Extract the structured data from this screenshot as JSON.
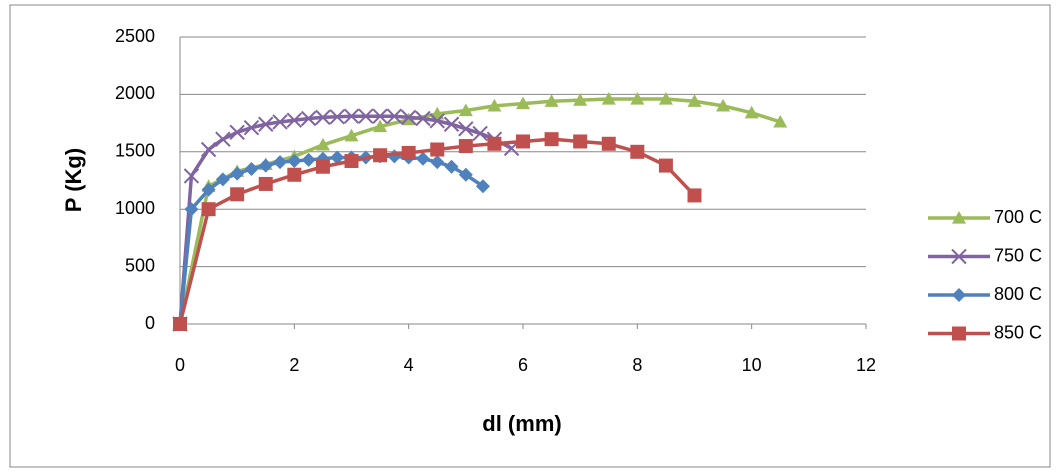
{
  "chart_data": {
    "type": "line",
    "x_label": "dl (mm)",
    "y_label": "P (Kg)",
    "xlim": [
      0,
      12
    ],
    "xticks": [
      0,
      2,
      4,
      6,
      8,
      10,
      12
    ],
    "ylim": [
      0,
      2500
    ],
    "yticks": [
      0,
      500,
      1000,
      1500,
      2000,
      2500
    ],
    "grid": true,
    "legend": "right",
    "series": [
      {
        "name": "700 C",
        "color": "#9bbb59",
        "marker": "triangle",
        "x": [
          0,
          0.5,
          1,
          1.5,
          2,
          2.5,
          3,
          3.5,
          4,
          4.5,
          5,
          5.5,
          6,
          6.5,
          7,
          7.5,
          8,
          8.5,
          9,
          9.5,
          10,
          10.5
        ],
        "values": [
          0,
          1200,
          1330,
          1390,
          1460,
          1560,
          1640,
          1720,
          1780,
          1830,
          1860,
          1900,
          1920,
          1940,
          1950,
          1960,
          1960,
          1960,
          1940,
          1900,
          1840,
          1760
        ]
      },
      {
        "name": "750 C",
        "color": "#8064a2",
        "marker": "x",
        "x": [
          0,
          0.2,
          0.5,
          0.75,
          1,
          1.25,
          1.5,
          1.75,
          2,
          2.25,
          2.5,
          2.75,
          3,
          3.25,
          3.5,
          3.75,
          4,
          4.25,
          4.5,
          4.75,
          5,
          5.25,
          5.5,
          5.8
        ],
        "values": [
          0,
          1290,
          1520,
          1610,
          1670,
          1710,
          1740,
          1760,
          1775,
          1790,
          1800,
          1805,
          1810,
          1810,
          1810,
          1810,
          1800,
          1790,
          1770,
          1740,
          1700,
          1660,
          1610,
          1530
        ]
      },
      {
        "name": "800 C",
        "color": "#4f81bd",
        "marker": "diamond",
        "x": [
          0,
          0.2,
          0.5,
          0.75,
          1,
          1.25,
          1.5,
          1.75,
          2,
          2.25,
          2.5,
          2.75,
          3,
          3.25,
          3.5,
          3.75,
          4,
          4.25,
          4.5,
          4.75,
          5,
          5.3
        ],
        "values": [
          0,
          1000,
          1170,
          1260,
          1310,
          1350,
          1380,
          1410,
          1420,
          1430,
          1440,
          1450,
          1450,
          1450,
          1460,
          1460,
          1450,
          1440,
          1410,
          1370,
          1300,
          1200
        ]
      },
      {
        "name": "850 C",
        "color": "#c0504d",
        "marker": "square",
        "x": [
          0,
          0.5,
          1,
          1.5,
          2,
          2.5,
          3,
          3.5,
          4,
          4.5,
          5,
          5.5,
          6,
          6.5,
          7,
          7.5,
          8,
          8.5,
          9
        ],
        "values": [
          0,
          1000,
          1130,
          1220,
          1300,
          1370,
          1420,
          1470,
          1490,
          1520,
          1550,
          1570,
          1590,
          1610,
          1590,
          1570,
          1500,
          1380,
          1120
        ]
      }
    ]
  }
}
